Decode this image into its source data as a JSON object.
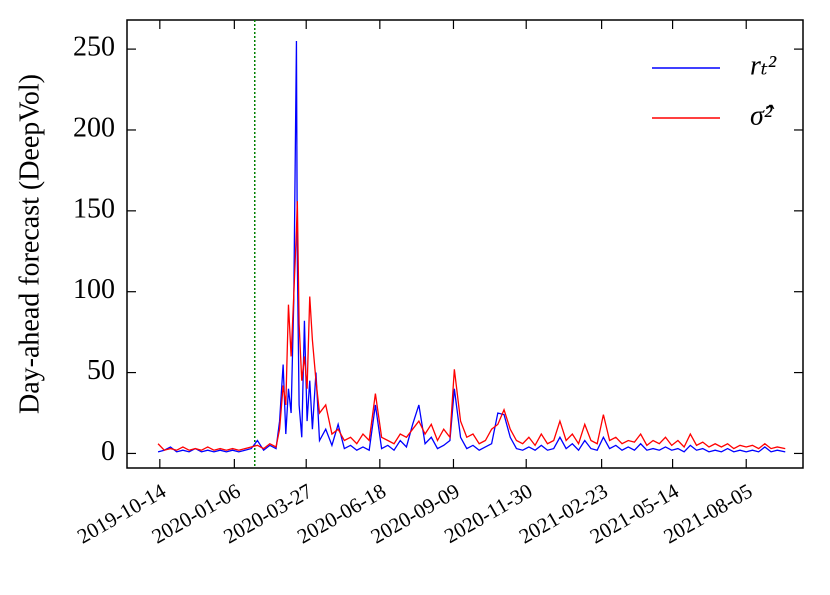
{
  "chart_data": {
    "type": "line",
    "ylabel": "Day-ahead forecast (DeepVol)",
    "x": [
      "2019-10-12",
      "2019-10-19",
      "2019-10-26",
      "2019-11-02",
      "2019-11-09",
      "2019-11-16",
      "2019-11-23",
      "2019-11-30",
      "2019-12-07",
      "2019-12-14",
      "2019-12-21",
      "2019-12-28",
      "2020-01-04",
      "2020-01-11",
      "2020-01-18",
      "2020-01-25",
      "2020-02-01",
      "2020-02-08",
      "2020-02-15",
      "2020-02-22",
      "2020-02-26",
      "2020-03-01",
      "2020-03-04",
      "2020-03-07",
      "2020-03-10",
      "2020-03-13",
      "2020-03-16",
      "2020-03-17",
      "2020-03-19",
      "2020-03-22",
      "2020-03-25",
      "2020-03-28",
      "2020-03-31",
      "2020-04-03",
      "2020-04-07",
      "2020-04-11",
      "2020-04-18",
      "2020-04-25",
      "2020-05-02",
      "2020-05-09",
      "2020-05-16",
      "2020-05-23",
      "2020-05-30",
      "2020-06-06",
      "2020-06-13",
      "2020-06-20",
      "2020-06-27",
      "2020-07-04",
      "2020-07-11",
      "2020-07-18",
      "2020-07-25",
      "2020-08-01",
      "2020-08-08",
      "2020-08-15",
      "2020-08-22",
      "2020-08-29",
      "2020-09-05",
      "2020-09-10",
      "2020-09-17",
      "2020-09-24",
      "2020-10-01",
      "2020-10-08",
      "2020-10-15",
      "2020-10-22",
      "2020-10-29",
      "2020-11-05",
      "2020-11-12",
      "2020-11-19",
      "2020-11-26",
      "2020-12-03",
      "2020-12-10",
      "2020-12-17",
      "2020-12-24",
      "2020-12-31",
      "2021-01-07",
      "2021-01-14",
      "2021-01-21",
      "2021-01-28",
      "2021-02-04",
      "2021-02-11",
      "2021-02-18",
      "2021-02-25",
      "2021-03-04",
      "2021-03-11",
      "2021-03-18",
      "2021-03-25",
      "2021-04-01",
      "2021-04-08",
      "2021-04-15",
      "2021-04-22",
      "2021-04-29",
      "2021-05-06",
      "2021-05-13",
      "2021-05-20",
      "2021-05-27",
      "2021-06-03",
      "2021-06-10",
      "2021-06-17",
      "2021-06-24",
      "2021-07-01",
      "2021-07-08",
      "2021-07-15",
      "2021-07-22",
      "2021-07-29",
      "2021-08-05",
      "2021-08-12",
      "2021-08-19",
      "2021-08-26",
      "2021-09-02",
      "2021-09-09",
      "2021-09-18"
    ],
    "series": [
      {
        "name": "rₜ²",
        "color": "#0000ff",
        "values": [
          1,
          2,
          4,
          1,
          2,
          1,
          3,
          1,
          2,
          1,
          2,
          1,
          2,
          1,
          2,
          3,
          8,
          2,
          5,
          3,
          20,
          55,
          12,
          40,
          25,
          95,
          255,
          120,
          30,
          10,
          82,
          20,
          45,
          15,
          50,
          8,
          15,
          5,
          18,
          3,
          5,
          2,
          4,
          2,
          30,
          3,
          5,
          2,
          8,
          4,
          18,
          30,
          6,
          10,
          3,
          5,
          8,
          40,
          10,
          3,
          5,
          2,
          4,
          6,
          25,
          24,
          10,
          3,
          2,
          4,
          2,
          5,
          2,
          3,
          10,
          3,
          6,
          2,
          8,
          3,
          2,
          10,
          3,
          5,
          2,
          4,
          2,
          6,
          2,
          3,
          2,
          4,
          2,
          3,
          1,
          5,
          2,
          3,
          1,
          2,
          1,
          3,
          1,
          2,
          1,
          2,
          1,
          4,
          1,
          2,
          1
        ]
      },
      {
        "name": "σ̂²",
        "color": "#ff0000",
        "values": [
          6,
          2,
          3,
          2,
          4,
          2,
          3,
          2,
          4,
          2,
          3,
          2,
          3,
          2,
          3,
          4,
          5,
          3,
          6,
          4,
          15,
          42,
          30,
          92,
          60,
          98,
          138,
          156,
          80,
          45,
          60,
          40,
          97,
          70,
          45,
          25,
          30,
          12,
          15,
          8,
          10,
          6,
          12,
          8,
          37,
          10,
          8,
          6,
          12,
          10,
          15,
          20,
          12,
          18,
          8,
          15,
          10,
          52,
          20,
          10,
          12,
          6,
          8,
          15,
          18,
          27,
          15,
          8,
          6,
          10,
          5,
          12,
          6,
          8,
          20,
          8,
          12,
          6,
          18,
          8,
          6,
          24,
          8,
          10,
          6,
          8,
          7,
          12,
          5,
          8,
          6,
          10,
          5,
          8,
          4,
          12,
          5,
          7,
          4,
          6,
          4,
          6,
          3,
          5,
          4,
          5,
          3,
          6,
          3,
          4,
          3
        ]
      }
    ],
    "vline": {
      "x": "2020-01-29",
      "color": "#008000"
    },
    "xlim": [
      "2019-09-07",
      "2021-10-08"
    ],
    "xticks": [
      "2019-10-14",
      "2020-01-06",
      "2020-03-27",
      "2020-06-18",
      "2020-09-09",
      "2020-11-30",
      "2021-02-23",
      "2021-05-14",
      "2021-08-05"
    ],
    "ylim": [
      -9,
      268
    ],
    "yticks": [
      0,
      50,
      100,
      150,
      200,
      250
    ],
    "legend": "upper right"
  }
}
